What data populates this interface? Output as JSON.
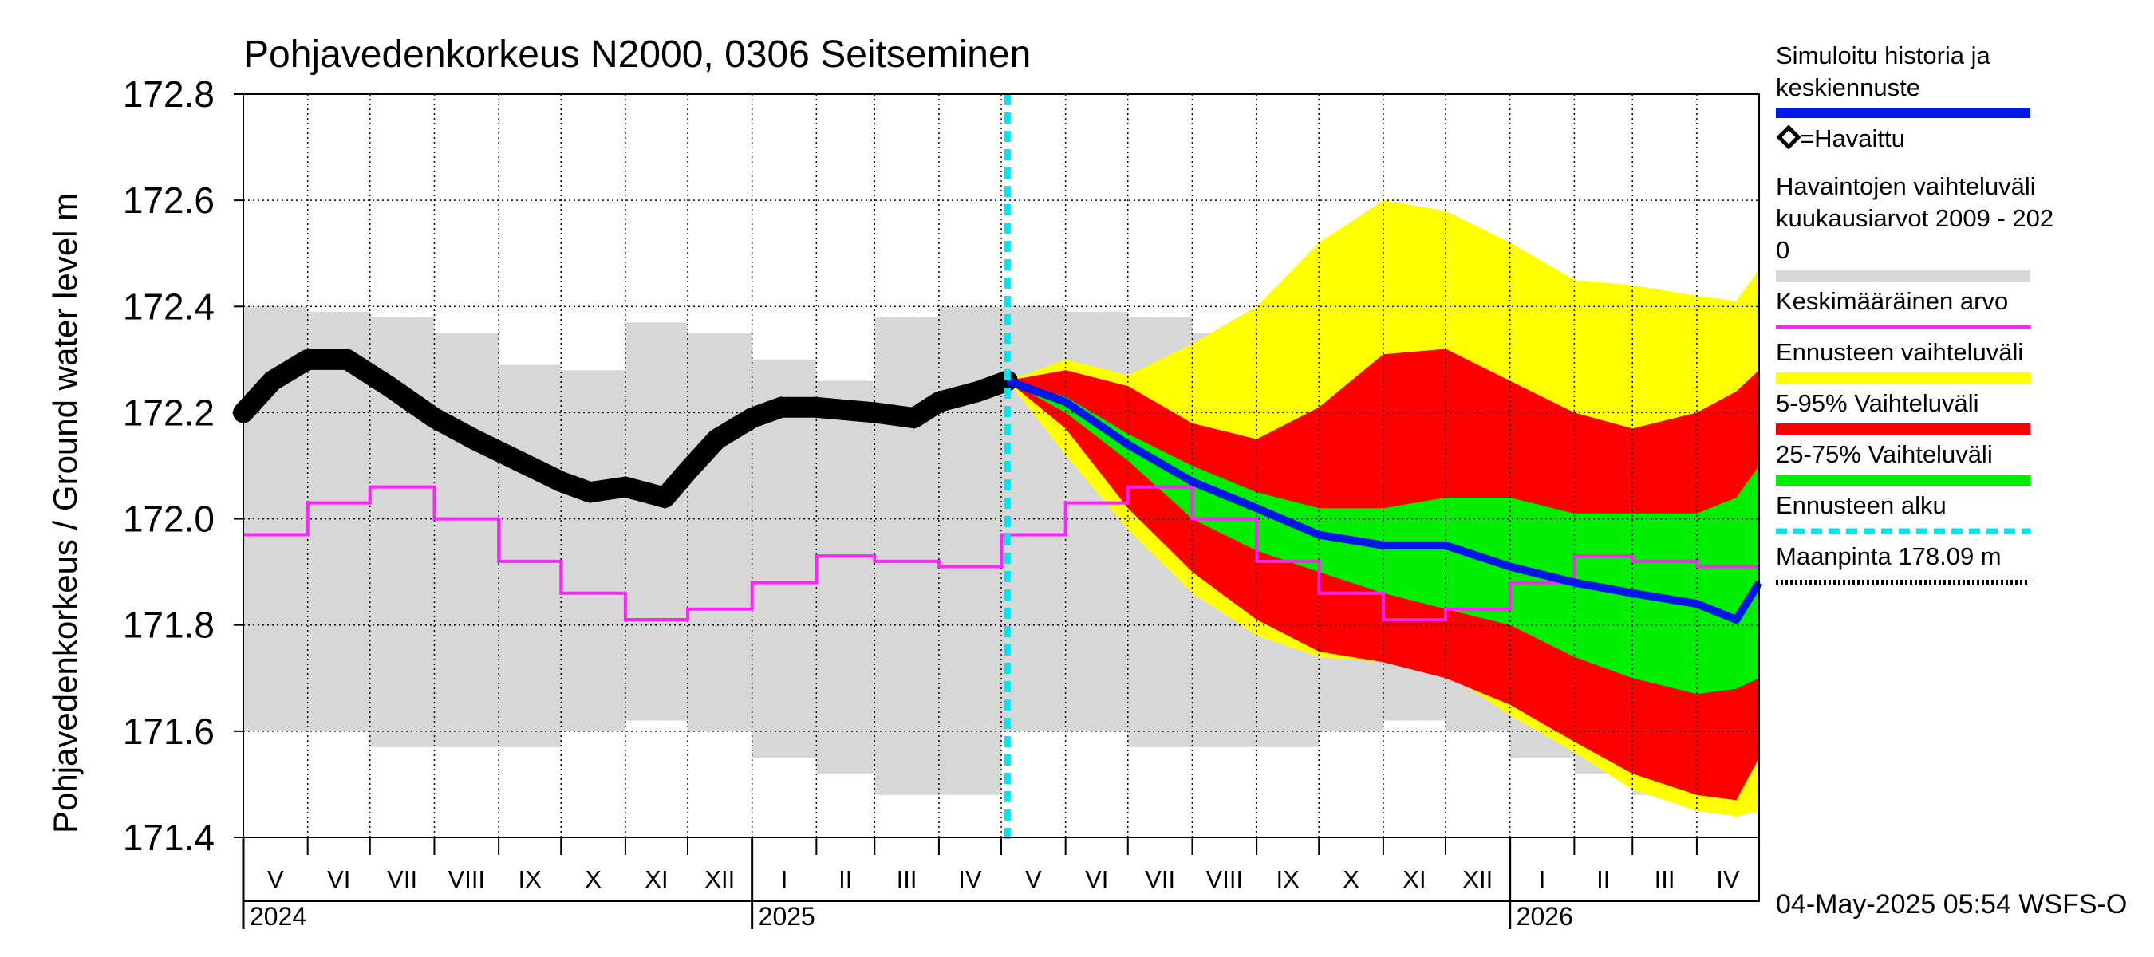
{
  "chart_data": {
    "type": "area",
    "title": "Pohjavedenkorkeus N2000, 0306 Seitseminen",
    "ylabel": "Pohjavedenkorkeus / Ground water level   m",
    "ylim": [
      171.4,
      172.8
    ],
    "y_ticks": [
      "172.8",
      "172.6",
      "172.4",
      "172.2",
      "172.0",
      "171.8",
      "171.6",
      "171.4"
    ],
    "months": [
      "V",
      "VI",
      "VII",
      "VIII",
      "IX",
      "X",
      "XI",
      "XII",
      "I",
      "II",
      "III",
      "IV",
      "V",
      "VI",
      "VII",
      "VIII",
      "IX",
      "X",
      "XI",
      "XII",
      "I",
      "II",
      "III",
      "IV"
    ],
    "years": [
      "2024",
      "2025",
      "2026"
    ],
    "timestamp": "04-May-2025 05:54 WSFS-O",
    "forecast_start": "2025-05-04",
    "colors": {
      "observed": "#000000",
      "simulated": "#0018e6",
      "history_range": "#d7d7d7",
      "mean": "#ff22ff",
      "forecast_range": "#ffff00",
      "p5_95": "#ff0000",
      "p25_75": "#00ee00",
      "forecast_start": "#00e5ee"
    },
    "legend": [
      {
        "label_lines": [
          "Simuloitu historia ja",
          "keskiennuste"
        ],
        "symbol": "line",
        "color": "#0018e6"
      },
      {
        "label_lines": [
          "=Havaittu"
        ],
        "symbol": "diamond",
        "color": "#000000"
      },
      {
        "label_lines": [
          "Havaintojen vaihteluväli",
          " kuukausiarvot 2009 - 202",
          "0"
        ],
        "symbol": "bar",
        "color": "#d7d7d7"
      },
      {
        "label_lines": [
          "Keskimääräinen arvo"
        ],
        "symbol": "thin",
        "color": "#ff22ff"
      },
      {
        "label_lines": [
          "Ennusteen vaihteluväli"
        ],
        "symbol": "bar",
        "color": "#ffff00"
      },
      {
        "label_lines": [
          "5-95% Vaihteluväli"
        ],
        "symbol": "bar",
        "color": "#ff0000"
      },
      {
        "label_lines": [
          "25-75% Vaihteluväli"
        ],
        "symbol": "bar",
        "color": "#00ee00"
      },
      {
        "label_lines": [
          "Ennusteen alku"
        ],
        "symbol": "dashed",
        "color": "#00e5ee"
      },
      {
        "label_lines": [
          "Maanpinta 178.09 m"
        ],
        "symbol": "dotted",
        "color": "#000000"
      }
    ],
    "history_range_monthly": {
      "months": [
        "V",
        "VI",
        "VII",
        "VIII",
        "IX",
        "X",
        "XI",
        "XII",
        "I",
        "II",
        "III",
        "IV"
      ],
      "min": [
        171.6,
        171.6,
        171.57,
        171.57,
        171.57,
        171.6,
        171.62,
        171.6,
        171.55,
        171.52,
        171.48,
        171.48
      ],
      "max": [
        172.4,
        172.39,
        172.38,
        172.35,
        172.29,
        172.28,
        172.37,
        172.35,
        172.3,
        172.26,
        172.38,
        172.4
      ]
    },
    "mean_monthly": {
      "months": [
        "V",
        "VI",
        "VII",
        "VIII",
        "IX",
        "X",
        "XI",
        "XII",
        "I",
        "II",
        "III",
        "IV"
      ],
      "values": [
        171.97,
        172.03,
        172.06,
        172.0,
        171.92,
        171.86,
        171.81,
        171.83,
        171.88,
        171.93,
        171.92,
        171.91
      ]
    },
    "observed": {
      "x": [
        "2024-05-01",
        "2024-05-15",
        "2024-06-01",
        "2024-06-20",
        "2024-07-10",
        "2024-08-01",
        "2024-08-20",
        "2024-09-10",
        "2024-10-01",
        "2024-10-15",
        "2024-11-01",
        "2024-11-20",
        "2024-12-01",
        "2024-12-15",
        "2025-01-01",
        "2025-01-15",
        "2025-02-01",
        "2025-03-01",
        "2025-03-20",
        "2025-04-01",
        "2025-04-20",
        "2025-05-04"
      ],
      "y": [
        172.2,
        172.26,
        172.3,
        172.3,
        172.25,
        172.19,
        172.15,
        172.11,
        172.07,
        172.05,
        172.06,
        172.04,
        172.09,
        172.15,
        172.19,
        172.21,
        172.21,
        172.2,
        172.19,
        172.22,
        172.24,
        172.26
      ]
    },
    "forecast": {
      "x": [
        "2025-05-04",
        "2025-06-01",
        "2025-07-01",
        "2025-08-01",
        "2025-09-01",
        "2025-10-01",
        "2025-11-01",
        "2025-12-01",
        "2026-01-01",
        "2026-02-01",
        "2026-03-01",
        "2026-04-01",
        "2026-04-20",
        "2026-05-01"
      ],
      "median": [
        172.26,
        172.22,
        172.14,
        172.07,
        172.02,
        171.97,
        171.95,
        171.95,
        171.91,
        171.88,
        171.86,
        171.84,
        171.81,
        171.88
      ],
      "p25": [
        172.26,
        172.2,
        172.11,
        172.0,
        171.94,
        171.9,
        171.86,
        171.83,
        171.8,
        171.74,
        171.7,
        171.67,
        171.68,
        171.7
      ],
      "p75": [
        172.26,
        172.23,
        172.16,
        172.1,
        172.05,
        172.02,
        172.02,
        172.04,
        172.04,
        172.01,
        172.01,
        172.01,
        172.04,
        172.1
      ],
      "p5": [
        172.26,
        172.17,
        172.02,
        171.9,
        171.81,
        171.75,
        171.73,
        171.7,
        171.65,
        171.58,
        171.52,
        171.48,
        171.47,
        171.55
      ],
      "p95": [
        172.26,
        172.28,
        172.25,
        172.18,
        172.15,
        172.21,
        172.31,
        172.32,
        172.26,
        172.2,
        172.17,
        172.2,
        172.24,
        172.28
      ],
      "min": [
        172.26,
        172.12,
        171.98,
        171.86,
        171.78,
        171.74,
        171.73,
        171.71,
        171.63,
        171.56,
        171.49,
        171.45,
        171.44,
        171.45
      ],
      "max": [
        172.26,
        172.3,
        172.27,
        172.33,
        172.4,
        172.52,
        172.6,
        172.58,
        172.52,
        172.45,
        172.44,
        172.42,
        172.41,
        172.47
      ]
    }
  }
}
